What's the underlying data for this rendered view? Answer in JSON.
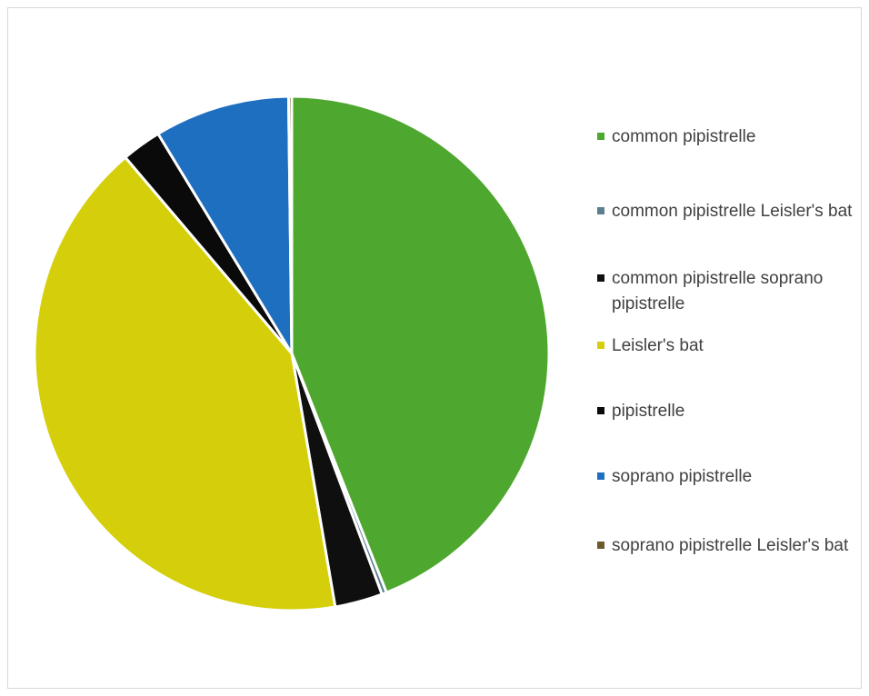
{
  "chart_data": {
    "type": "pie",
    "title": "",
    "slices": [
      {
        "label": "common pipistrelle",
        "value": 44,
        "color": "#4ea72e"
      },
      {
        "label": "common pipistrelle Leisler's bat",
        "value": 0.3,
        "color": "#5b7f8f"
      },
      {
        "label": "common pipistrelle soprano pipistrelle",
        "value": 3,
        "color": "#0f0f0f"
      },
      {
        "label": "Leisler's bat",
        "value": 41.5,
        "color": "#d4cf0a"
      },
      {
        "label": "pipistrelle",
        "value": 2.5,
        "color": "#0a0a0a"
      },
      {
        "label": "soprano pipistrelle",
        "value": 8.5,
        "color": "#1f6fc0"
      },
      {
        "label": "soprano pipistrelle Leisler's bat",
        "value": 0.2,
        "color": "#6b5a2a"
      }
    ],
    "legend_position": "right"
  }
}
